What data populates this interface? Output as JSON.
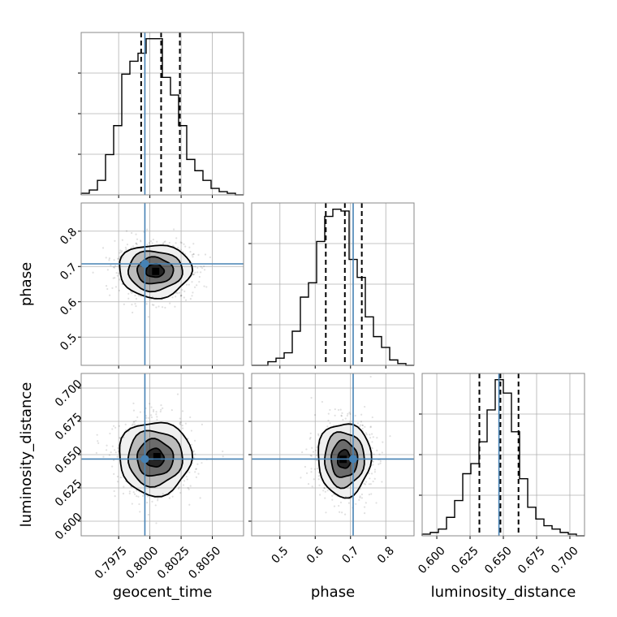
{
  "chart_data": {
    "type": "corner",
    "colors": {
      "truth": "#4682b4",
      "hist": "#000000",
      "density": "#000000"
    },
    "parameters": [
      {
        "name": "geocent_time",
        "label": "geocent_time",
        "range": [
          0.7945,
          0.8075
        ],
        "ticks": [
          0.7975,
          0.8,
          0.8025,
          0.805
        ],
        "tick_labels": [
          "0.7975",
          "0.8000",
          "0.8025",
          "0.8050"
        ],
        "truth": 0.7996,
        "quantiles": [
          0.7993,
          0.8009,
          0.8024
        ],
        "marginal": {
          "bin_edges": [
            0.7945,
            0.79515,
            0.7958,
            0.79645,
            0.7971,
            0.79775,
            0.7984,
            0.79905,
            0.7997,
            0.80035,
            0.801,
            0.80165,
            0.8023,
            0.80295,
            0.8036,
            0.80425,
            0.8049,
            0.80555,
            0.8062,
            0.80685,
            0.8075
          ],
          "counts": [
            1,
            3,
            9,
            25,
            43,
            75,
            83,
            88,
            97,
            97,
            73,
            62,
            43,
            22,
            15,
            9,
            4,
            2,
            1,
            0
          ]
        }
      },
      {
        "name": "phase",
        "label": "phase",
        "range": [
          0.42,
          0.88
        ],
        "ticks": [
          0.5,
          0.6,
          0.7,
          0.8
        ],
        "tick_labels": [
          "0.5",
          "0.6",
          "0.7",
          "0.8"
        ],
        "truth": 0.7075,
        "quantiles": [
          0.63,
          0.684,
          0.732
        ],
        "marginal": {
          "bin_edges": [
            0.42,
            0.443,
            0.466,
            0.489,
            0.512,
            0.535,
            0.558,
            0.581,
            0.604,
            0.627,
            0.65,
            0.673,
            0.696,
            0.719,
            0.742,
            0.765,
            0.788,
            0.811,
            0.834,
            0.857,
            0.88
          ],
          "counts": [
            0,
            0,
            2,
            4,
            7,
            19,
            38,
            46,
            69,
            83,
            87,
            86,
            59,
            49,
            27,
            16,
            10,
            3,
            1,
            0
          ]
        }
      },
      {
        "name": "luminosity_distance",
        "label": "luminosity_distance",
        "range": [
          0.589,
          0.711
        ],
        "ticks": [
          0.6,
          0.625,
          0.65,
          0.675,
          0.7
        ],
        "tick_labels": [
          "0.600",
          "0.625",
          "0.650",
          "0.675",
          "0.700"
        ],
        "truth": 0.6467,
        "quantiles": [
          0.632,
          0.6478,
          0.6614
        ],
        "marginal": {
          "bin_edges": [
            0.589,
            0.5951,
            0.6012,
            0.6073,
            0.6134,
            0.6195,
            0.6256,
            0.6317,
            0.6378,
            0.6439,
            0.65,
            0.6561,
            0.6622,
            0.6683,
            0.6744,
            0.6805,
            0.6866,
            0.6927,
            0.6988,
            0.7049,
            0.711
          ],
          "counts": [
            1,
            2,
            4,
            11,
            21,
            37,
            43,
            56,
            75,
            93,
            85,
            62,
            34,
            17,
            10,
            6,
            4,
            2,
            1,
            0
          ]
        }
      }
    ],
    "pairs": [
      {
        "x": "geocent_time",
        "y": "phase",
        "mean": [
          0.8004,
          0.688
        ],
        "sd": [
          0.00145,
          0.0375
        ],
        "rho": 0.0,
        "peak": [
          0.8005,
          0.685
        ]
      },
      {
        "x": "geocent_time",
        "y": "luminosity_distance",
        "mean": [
          0.8004,
          0.6475
        ],
        "sd": [
          0.00145,
          0.0138
        ],
        "rho": 0.0,
        "peak": [
          0.8006,
          0.6482
        ]
      },
      {
        "x": "phase",
        "y": "luminosity_distance",
        "mean": [
          0.682,
          0.6465
        ],
        "sd": [
          0.0375,
          0.0138
        ],
        "rho": 0.0,
        "peak": [
          0.68,
          0.6462
        ]
      }
    ],
    "contour_levels_sigma": [
      0.5,
      1.0,
      1.5,
      2.0
    ],
    "grid": true
  }
}
